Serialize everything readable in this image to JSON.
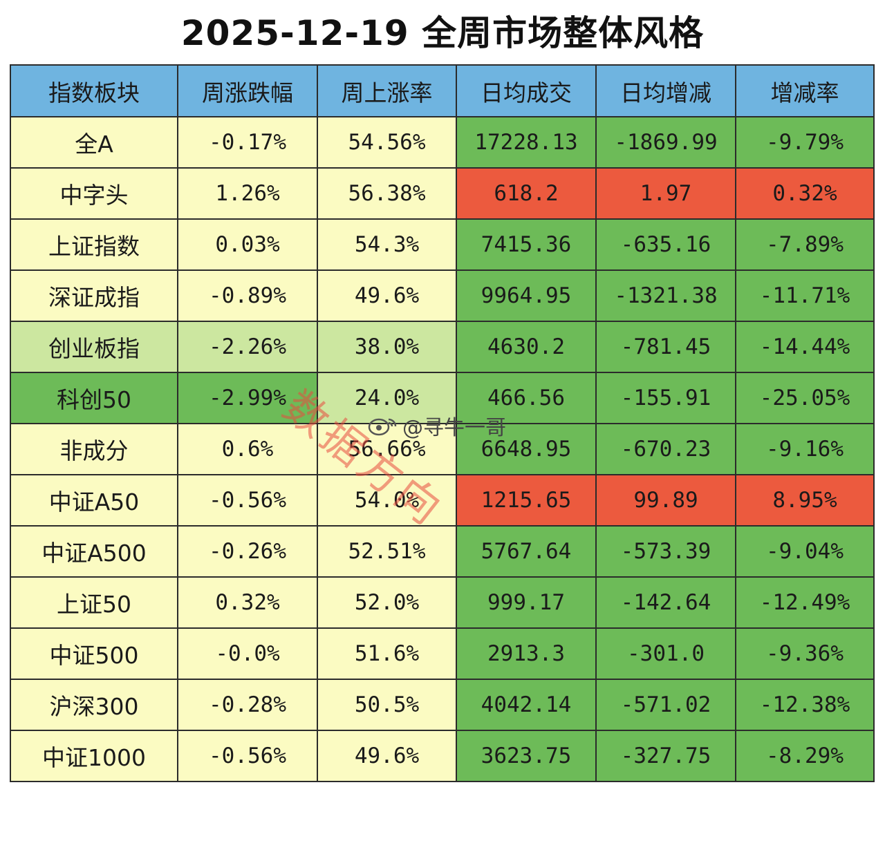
{
  "title": "2025-12-19 全周市场整体风格",
  "watermark": "数据方向",
  "handle": "@寻牛一哥",
  "colors": {
    "header": "#6fb4e0",
    "yellow": "#fbfbc2",
    "light_green": "#cce7a0",
    "green": "#6dbb58",
    "red": "#ec5a3e",
    "border": "#2b2b2b"
  },
  "chart_data": {
    "type": "table",
    "columns": [
      "指数板块",
      "周涨跌幅",
      "周上涨率",
      "日均成交",
      "日均增减",
      "增减率"
    ],
    "rows": [
      {
        "cells": [
          "全A",
          "-0.17%",
          "54.56%",
          "17228.13",
          "-1869.99",
          "-9.79%"
        ],
        "fill": [
          "yellow",
          "yellow",
          "yellow",
          "green",
          "green",
          "green"
        ]
      },
      {
        "cells": [
          "中字头",
          "1.26%",
          "56.38%",
          "618.2",
          "1.97",
          "0.32%"
        ],
        "fill": [
          "yellow",
          "yellow",
          "yellow",
          "red",
          "red",
          "red"
        ]
      },
      {
        "cells": [
          "上证指数",
          "0.03%",
          "54.3%",
          "7415.36",
          "-635.16",
          "-7.89%"
        ],
        "fill": [
          "yellow",
          "yellow",
          "yellow",
          "green",
          "green",
          "green"
        ]
      },
      {
        "cells": [
          "深证成指",
          "-0.89%",
          "49.6%",
          "9964.95",
          "-1321.38",
          "-11.71%"
        ],
        "fill": [
          "yellow",
          "yellow",
          "yellow",
          "green",
          "green",
          "green"
        ]
      },
      {
        "cells": [
          "创业板指",
          "-2.26%",
          "38.0%",
          "4630.2",
          "-781.45",
          "-14.44%"
        ],
        "fill": [
          "light_green",
          "light_green",
          "light_green",
          "green",
          "green",
          "green"
        ]
      },
      {
        "cells": [
          "科创50",
          "-2.99%",
          "24.0%",
          "466.56",
          "-155.91",
          "-25.05%"
        ],
        "fill": [
          "green",
          "green",
          "light_green",
          "green",
          "green",
          "green"
        ]
      },
      {
        "cells": [
          "非成分",
          "0.6%",
          "56.66%",
          "6648.95",
          "-670.23",
          "-9.16%"
        ],
        "fill": [
          "yellow",
          "yellow",
          "yellow",
          "green",
          "green",
          "green"
        ]
      },
      {
        "cells": [
          "中证A50",
          "-0.56%",
          "54.0%",
          "1215.65",
          "99.89",
          "8.95%"
        ],
        "fill": [
          "yellow",
          "yellow",
          "yellow",
          "red",
          "red",
          "red"
        ]
      },
      {
        "cells": [
          "中证A500",
          "-0.26%",
          "52.51%",
          "5767.64",
          "-573.39",
          "-9.04%"
        ],
        "fill": [
          "yellow",
          "yellow",
          "yellow",
          "green",
          "green",
          "green"
        ]
      },
      {
        "cells": [
          "上证50",
          "0.32%",
          "52.0%",
          "999.17",
          "-142.64",
          "-12.49%"
        ],
        "fill": [
          "yellow",
          "yellow",
          "yellow",
          "green",
          "green",
          "green"
        ]
      },
      {
        "cells": [
          "中证500",
          "-0.0%",
          "51.6%",
          "2913.3",
          "-301.0",
          "-9.36%"
        ],
        "fill": [
          "yellow",
          "yellow",
          "yellow",
          "green",
          "green",
          "green"
        ]
      },
      {
        "cells": [
          "沪深300",
          "-0.28%",
          "50.5%",
          "4042.14",
          "-571.02",
          "-12.38%"
        ],
        "fill": [
          "yellow",
          "yellow",
          "yellow",
          "green",
          "green",
          "green"
        ]
      },
      {
        "cells": [
          "中证1000",
          "-0.56%",
          "49.6%",
          "3623.75",
          "-327.75",
          "-8.29%"
        ],
        "fill": [
          "yellow",
          "yellow",
          "yellow",
          "green",
          "green",
          "green"
        ]
      }
    ]
  }
}
